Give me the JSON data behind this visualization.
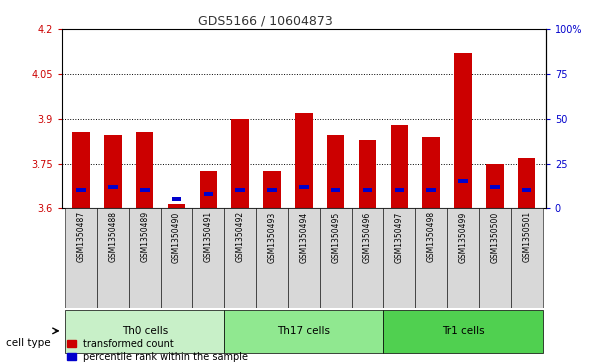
{
  "title": "GDS5166 / 10604873",
  "samples": [
    "GSM1350487",
    "GSM1350488",
    "GSM1350489",
    "GSM1350490",
    "GSM1350491",
    "GSM1350492",
    "GSM1350493",
    "GSM1350494",
    "GSM1350495",
    "GSM1350496",
    "GSM1350497",
    "GSM1350498",
    "GSM1350499",
    "GSM1350500",
    "GSM1350501"
  ],
  "red_values": [
    3.855,
    3.845,
    3.855,
    3.615,
    3.725,
    3.9,
    3.725,
    3.92,
    3.845,
    3.83,
    3.88,
    3.84,
    4.12,
    3.75,
    3.77
  ],
  "blue_pct": [
    10,
    12,
    10,
    5,
    8,
    10,
    10,
    12,
    10,
    10,
    10,
    10,
    15,
    12,
    10
  ],
  "cell_groups": [
    {
      "label": "Th0 cells",
      "start": 0,
      "end": 4,
      "color": "#c8f0c8"
    },
    {
      "label": "Th17 cells",
      "start": 5,
      "end": 9,
      "color": "#90e890"
    },
    {
      "label": "Tr1 cells",
      "start": 10,
      "end": 14,
      "color": "#50d050"
    }
  ],
  "ylim_left": [
    3.6,
    4.2
  ],
  "ylim_right": [
    0,
    100
  ],
  "yticks_left": [
    3.6,
    3.75,
    3.9,
    4.05,
    4.2
  ],
  "yticks_right": [
    0,
    25,
    50,
    75,
    100
  ],
  "ytick_labels_left": [
    "3.6",
    "3.75",
    "3.9",
    "4.05",
    "4.2"
  ],
  "ytick_labels_right": [
    "0",
    "25",
    "50",
    "75",
    "100%"
  ],
  "bar_color_red": "#cc0000",
  "bar_color_blue": "#0000cc",
  "bar_width": 0.55,
  "grid_color": "black",
  "bg_color": "#ffffff",
  "plot_bg": "#ffffff",
  "tick_bar_bg": "#d8d8d8",
  "title_color": "#333333",
  "legend_red_label": "transformed count",
  "legend_blue_label": "percentile rank within the sample",
  "cell_type_label": "cell type",
  "tick_color_left": "#cc0000",
  "tick_color_right": "#0000cc"
}
